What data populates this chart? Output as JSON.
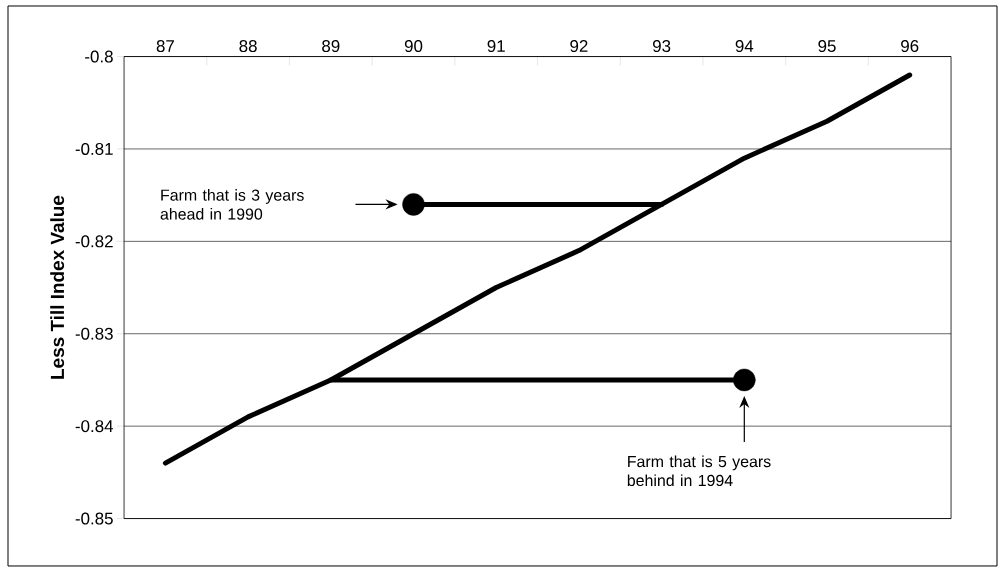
{
  "chart_data": {
    "type": "line",
    "ylabel": "Less Till Index Value",
    "categories": [
      "87",
      "88",
      "89",
      "90",
      "91",
      "92",
      "93",
      "94",
      "95",
      "96"
    ],
    "ylim": [
      -0.85,
      -0.8
    ],
    "yticks": [
      -0.85,
      -0.84,
      -0.83,
      -0.82,
      -0.81,
      -0.8
    ],
    "grid": "y",
    "series": [
      {
        "color": "#000000",
        "values": [
          -0.844,
          -0.839,
          -0.835,
          -0.83,
          -0.825,
          -0.821,
          -0.816,
          -0.811,
          -0.807,
          -0.802
        ]
      },
      {
        "color": "#000000",
        "values": [
          null,
          null,
          null,
          -0.816,
          -0.816,
          -0.816,
          -0.816,
          null,
          null,
          null
        ]
      },
      {
        "color": "#000000",
        "values": [
          null,
          null,
          -0.835,
          -0.835,
          -0.835,
          -0.835,
          -0.835,
          -0.835,
          null,
          null
        ]
      },
      {
        "type": "scatter",
        "marker": "circle",
        "color": "#000000",
        "x": [
          "90",
          "94"
        ],
        "values": [
          -0.816,
          -0.835
        ]
      }
    ],
    "annotations": [
      "Farm that is 3 years ahead in 1990",
      "Farm that is 5 years behind in 1994"
    ]
  }
}
